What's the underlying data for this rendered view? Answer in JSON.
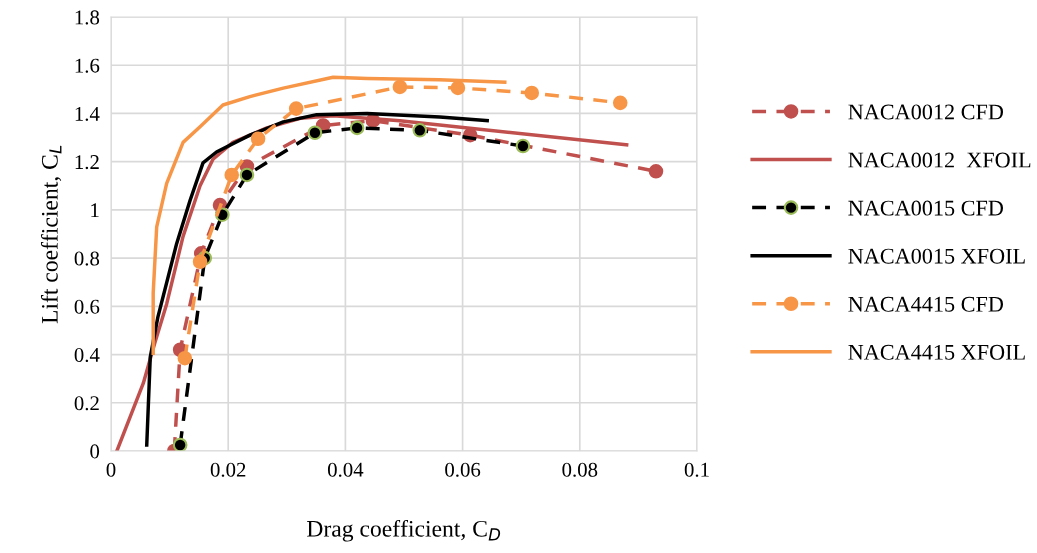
{
  "chart_data": {
    "type": "line",
    "xlabel": "Drag coefficient, C$_{D}$",
    "ylabel": "Lift coefficient, C$_{L}$",
    "xlim": [
      0,
      0.1
    ],
    "xticks": [
      0,
      0.02,
      0.04,
      0.06,
      0.08,
      0.1
    ],
    "ylim": [
      0,
      1.8
    ],
    "yticks": [
      0,
      0.2,
      0.4,
      0.6,
      0.8,
      1,
      1.2,
      1.4,
      1.6,
      1.8
    ],
    "grid": true,
    "legend": "right",
    "series": [
      {
        "name": "NACA0012 CFD",
        "color": "#c0504d",
        "marker": "circle",
        "line_style": "dashed",
        "x": [
          0.0108,
          0.0118,
          0.0154,
          0.0186,
          0.0232,
          0.0362,
          0.0447,
          0.0613,
          0.093
        ],
        "values": [
          0,
          0.42,
          0.82,
          1.02,
          1.18,
          1.35,
          1.37,
          1.31,
          1.16
        ]
      },
      {
        "name": "NACA0012  XFOIL",
        "color": "#c0504d",
        "marker": "none",
        "line_style": "solid",
        "x": [
          0.001,
          0.0055,
          0.0075,
          0.0095,
          0.0123,
          0.0152,
          0.0174,
          0.0208,
          0.0266,
          0.0323,
          0.038,
          0.0493,
          0.088
        ],
        "values": [
          0,
          0.28,
          0.45,
          0.61,
          0.89,
          1.1,
          1.21,
          1.28,
          1.34,
          1.38,
          1.39,
          1.37,
          1.27
        ]
      },
      {
        "name": "NACA0015 CFD",
        "color": "#000000",
        "marker": "circle",
        "line_style": "dashed",
        "x": [
          0.0118,
          0.016,
          0.019,
          0.0232,
          0.0348,
          0.042,
          0.0527,
          0.0703
        ],
        "values": [
          0.025,
          0.8,
          0.98,
          1.145,
          1.32,
          1.34,
          1.33,
          1.265
        ]
      },
      {
        "name": "NACA0015 XFOIL",
        "color": "#000000",
        "marker": "none",
        "line_style": "solid",
        "x": [
          0.0061,
          0.0067,
          0.008,
          0.0112,
          0.0135,
          0.0157,
          0.018,
          0.0237,
          0.0294,
          0.0351,
          0.0437,
          0.0561,
          0.0642
        ],
        "values": [
          0.025,
          0.39,
          0.555,
          0.86,
          1.04,
          1.195,
          1.24,
          1.31,
          1.365,
          1.395,
          1.4,
          1.385,
          1.37
        ]
      },
      {
        "name": "NACA4415 CFD",
        "color": "#f79646",
        "marker": "circle",
        "line_style": "dashed",
        "x": [
          0.0126,
          0.0152,
          0.0206,
          0.0251,
          0.0316,
          0.0493,
          0.0592,
          0.0718,
          0.0869
        ],
        "values": [
          0.385,
          0.785,
          1.145,
          1.295,
          1.42,
          1.51,
          1.506,
          1.485,
          1.444
        ]
      },
      {
        "name": "NACA4415 XFOIL",
        "color": "#f79646",
        "marker": "none",
        "line_style": "solid",
        "x": [
          0.0072,
          0.0072,
          0.0078,
          0.0095,
          0.0123,
          0.0152,
          0.0191,
          0.0237,
          0.0294,
          0.0379,
          0.0437,
          0.056,
          0.0672
        ],
        "values": [
          0.405,
          0.655,
          0.93,
          1.11,
          1.28,
          1.345,
          1.435,
          1.47,
          1.505,
          1.55,
          1.545,
          1.54,
          1.53
        ]
      }
    ]
  }
}
